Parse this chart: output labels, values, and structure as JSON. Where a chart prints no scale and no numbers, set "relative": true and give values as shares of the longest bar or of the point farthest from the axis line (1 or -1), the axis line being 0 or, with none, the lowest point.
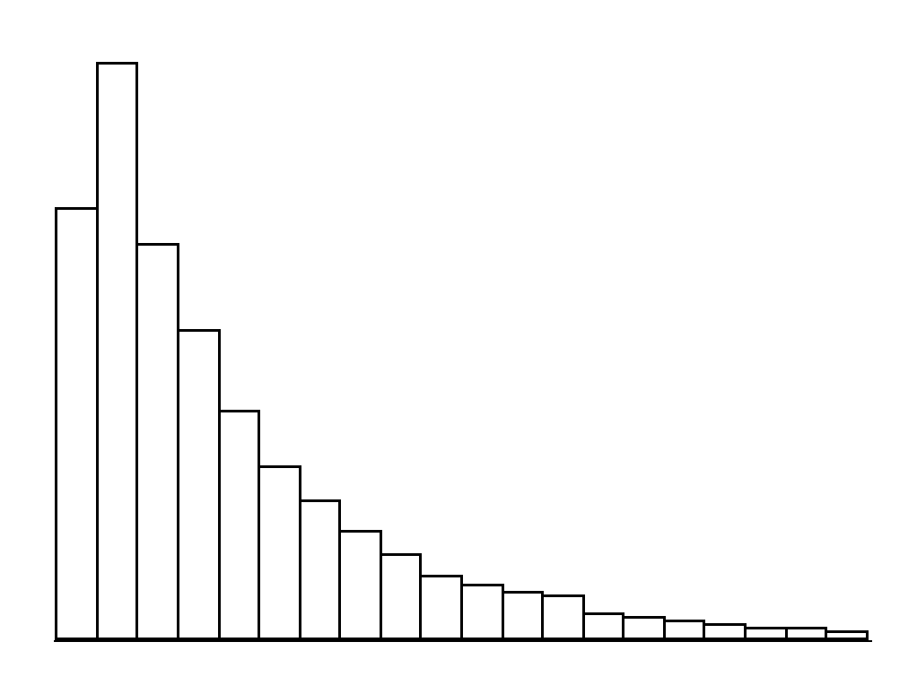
{
  "chart_data": {
    "type": "bar",
    "relative": true,
    "categories": [
      null,
      null,
      null,
      null,
      null,
      null,
      null,
      null,
      null,
      null,
      null,
      null,
      null,
      null,
      null,
      null,
      null,
      null,
      null,
      null
    ],
    "series": [
      {
        "color": "#ffffff",
        "values": [
          0.747,
          1,
          0.687,
          0.536,
          0.395,
          0.298,
          0.241,
          0.187,
          0.145,
          0.108,
          0.092,
          0.08,
          0.075,
          0.045,
          0.038,
          0.032,
          0.026,
          0.02,
          0.02,
          0.011
        ]
      }
    ]
  }
}
